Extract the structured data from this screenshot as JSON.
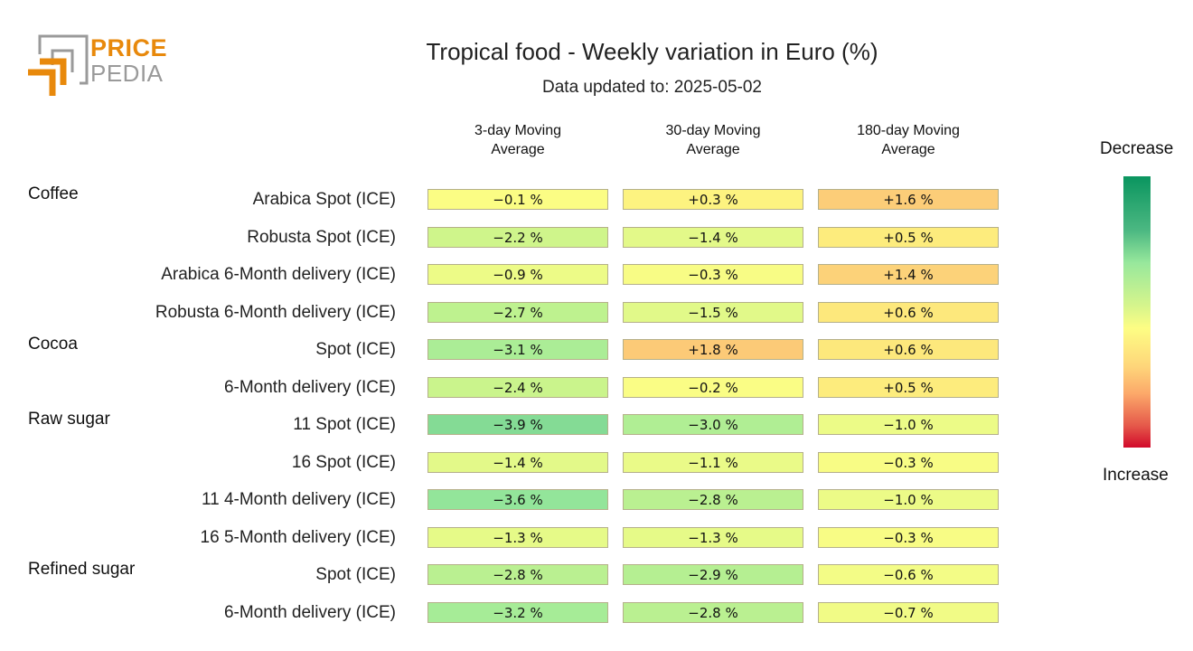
{
  "logo": {
    "word1": "PRICE",
    "word2": "PEDIA",
    "brand_orange": "#e8890c",
    "brand_gray": "#9a9a9a"
  },
  "header": {
    "title": "Tropical food - Weekly variation in Euro (%)",
    "subtitle": "Data updated to: 2025-05-02"
  },
  "legend": {
    "top_label": "Decrease",
    "bottom_label": "Increase",
    "colors": [
      "#0a955f",
      "#98e89c",
      "#fdfd84",
      "#fca96a",
      "#d20a2b"
    ]
  },
  "chart_data": {
    "type": "heatmap",
    "title": "Tropical food - Weekly variation in Euro (%)",
    "subtitle": "Data updated to: 2025-05-02",
    "columns": [
      "3-day Moving Average",
      "30-day Moving Average",
      "180-day Moving Average"
    ],
    "column_lines": [
      [
        "3-day Moving",
        "Average"
      ],
      [
        "30-day Moving",
        "Average"
      ],
      [
        "180-day Moving",
        "Average"
      ]
    ],
    "unit": "%",
    "groups": [
      {
        "name": "Coffee",
        "rows": [
          {
            "label": "Arabica Spot (ICE)",
            "values": [
              -0.1,
              0.3,
              1.6
            ]
          },
          {
            "label": "Robusta Spot (ICE)",
            "values": [
              -2.2,
              -1.4,
              0.5
            ]
          },
          {
            "label": "Arabica 6-Month delivery (ICE)",
            "values": [
              -0.9,
              -0.3,
              1.4
            ]
          },
          {
            "label": "Robusta 6-Month delivery (ICE)",
            "values": [
              -2.7,
              -1.5,
              0.6
            ]
          }
        ]
      },
      {
        "name": "Cocoa",
        "rows": [
          {
            "label": "Spot (ICE)",
            "values": [
              -3.1,
              1.8,
              0.6
            ]
          },
          {
            "label": "6-Month delivery (ICE)",
            "values": [
              -2.4,
              -0.2,
              0.5
            ]
          }
        ]
      },
      {
        "name": "Raw sugar",
        "rows": [
          {
            "label": "11 Spot (ICE)",
            "values": [
              -3.9,
              -3.0,
              -1.0
            ]
          },
          {
            "label": "16 Spot (ICE)",
            "values": [
              -1.4,
              -1.1,
              -0.3
            ]
          },
          {
            "label": "11 4-Month delivery (ICE)",
            "values": [
              -3.6,
              -2.8,
              -1.0
            ]
          },
          {
            "label": "16 5-Month delivery (ICE)",
            "values": [
              -1.3,
              -1.3,
              -0.3
            ]
          }
        ]
      },
      {
        "name": "Refined sugar",
        "rows": [
          {
            "label": "Spot (ICE)",
            "values": [
              -2.8,
              -2.9,
              -0.6
            ]
          },
          {
            "label": "6-Month delivery (ICE)",
            "values": [
              -3.2,
              -2.8,
              -0.7
            ]
          }
        ]
      }
    ],
    "cell_text": [
      [
        "−0.1 %",
        "+0.3 %",
        "+1.6 %"
      ],
      [
        "−2.2 %",
        "−1.4 %",
        "+0.5 %"
      ],
      [
        "−0.9 %",
        "−0.3 %",
        "+1.4 %"
      ],
      [
        "−2.7 %",
        "−1.5 %",
        "+0.6 %"
      ],
      [
        "−3.1 %",
        "+1.8 %",
        "+0.6 %"
      ],
      [
        "−2.4 %",
        "−0.2 %",
        "+0.5 %"
      ],
      [
        "−3.9 %",
        "−3.0 %",
        "−1.0 %"
      ],
      [
        "−1.4 %",
        "−1.1 %",
        "−0.3 %"
      ],
      [
        "−3.6 %",
        "−2.8 %",
        "−1.0 %"
      ],
      [
        "−1.3 %",
        "−1.3 %",
        "−0.3 %"
      ],
      [
        "−2.8 %",
        "−2.9 %",
        "−0.6 %"
      ],
      [
        "−3.2 %",
        "−2.8 %",
        "−0.7 %"
      ]
    ],
    "color_scale": {
      "low_label": "Decrease",
      "high_label": "Increase"
    }
  }
}
